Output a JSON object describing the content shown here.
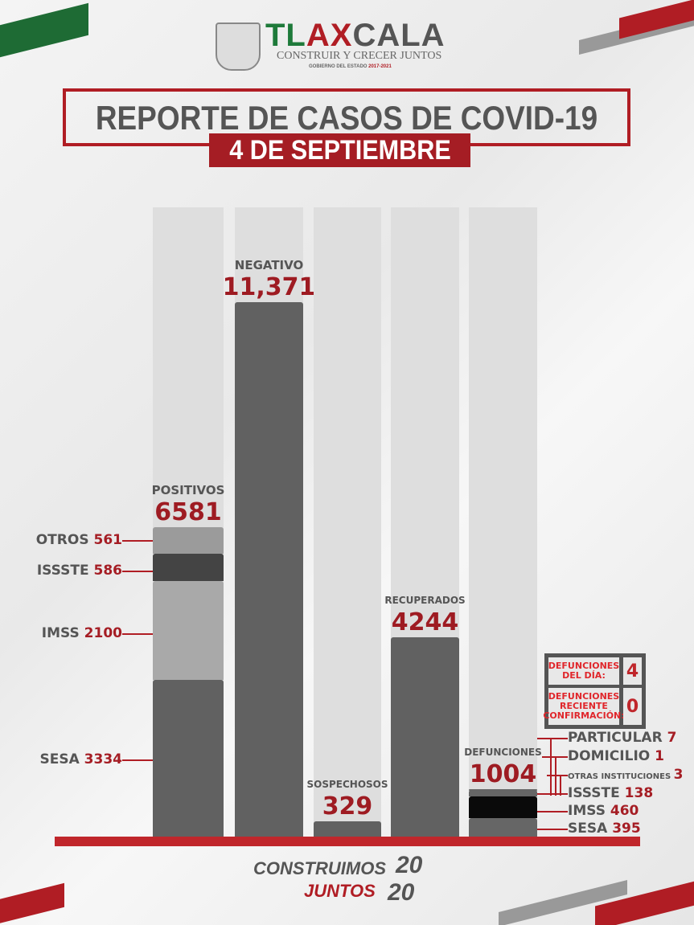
{
  "header": {
    "logo_text": "TLAXCALA",
    "motto": "CONSTRUIR Y CRECER JUNTOS",
    "government": "GOBIERNO DEL ESTADO",
    "period": "2017-2021",
    "title": "REPORTE DE CASOS DE COVID-19",
    "date": "4 DE SEPTIEMBRE"
  },
  "colors": {
    "accent": "#b01d24",
    "bar_dark": "#616161",
    "column_bg": "#dedede"
  },
  "chart_data": {
    "type": "bar",
    "categories": [
      "POSITIVOS",
      "NEGATIVO",
      "SOSPECHOSOS",
      "RECUPERADOS",
      "DEFUNCIONES"
    ],
    "value_labels": [
      "6581",
      "11,371",
      "329",
      "4244",
      "1004"
    ],
    "values": [
      6581,
      11371,
      329,
      4244,
      1004
    ],
    "stacks": {
      "POSITIVOS": [
        {
          "name": "SESA",
          "value": 3334,
          "color": "#616161"
        },
        {
          "name": "IMSS",
          "value": 2100,
          "color": "#a9a9a9"
        },
        {
          "name": "ISSSTE",
          "value": 586,
          "color": "#444444"
        },
        {
          "name": "OTROS",
          "value": 561,
          "color": "#9b9b9b"
        }
      ],
      "DEFUNCIONES": [
        {
          "name": "SESA",
          "value": 395,
          "color": "#666666"
        },
        {
          "name": "IMSS",
          "value": 460,
          "color": "#0a0a0a"
        },
        {
          "name": "ISSSTE",
          "value": 138,
          "color": "#666666"
        },
        {
          "name": "OTRAS INSTITUCIONES",
          "value": 3,
          "color": "#666666"
        },
        {
          "name": "DOMICILIO",
          "value": 1,
          "color": "#666666"
        },
        {
          "name": "PARTICULAR",
          "value": 7,
          "color": "#666666"
        }
      ]
    },
    "positivos_annotations": [
      {
        "name": "OTROS",
        "value": "561"
      },
      {
        "name": "ISSSTE",
        "value": "586"
      },
      {
        "name": "IMSS",
        "value": "2100"
      },
      {
        "name": "SESA",
        "value": "3334"
      }
    ],
    "defunciones_annotations": [
      {
        "name": "PARTICULAR",
        "value": "7"
      },
      {
        "name": "DOMICILIO",
        "value": "1"
      },
      {
        "name": "OTRAS INSTITUCIONES",
        "value": "3"
      },
      {
        "name": "ISSSTE",
        "value": "138"
      },
      {
        "name": "IMSS",
        "value": "460"
      },
      {
        "name": "SESA",
        "value": "395"
      }
    ],
    "ylim": [
      0,
      11371
    ]
  },
  "deaths_box": {
    "day_label": "DEFUNCIONES DEL DÍA:",
    "day_value": "4",
    "recent_label": "DEFUNCIONES RECIENTE CONFIRMACIÓN:",
    "recent_value": "0"
  },
  "footer": {
    "line1": "CONSTRUIMOS",
    "line2": "JUNTOS",
    "year_top": "20",
    "year_bottom": "20"
  }
}
